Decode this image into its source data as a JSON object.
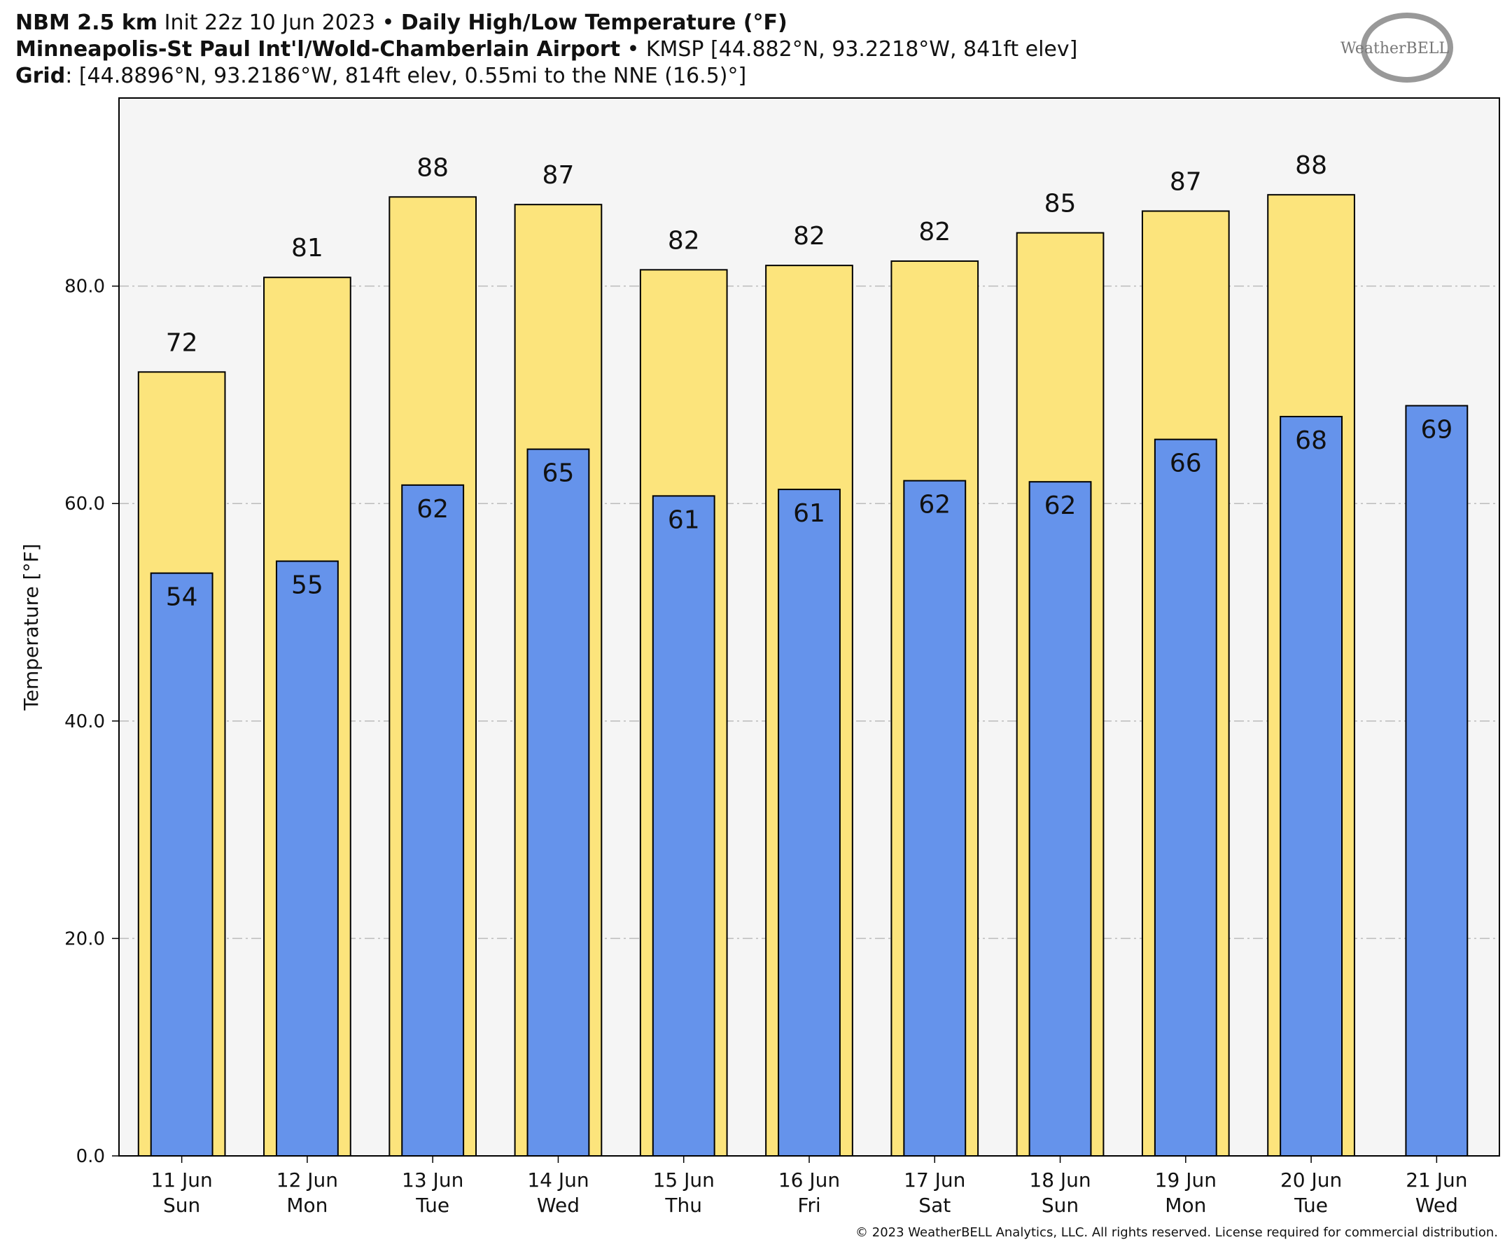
{
  "header": {
    "line1": [
      "NBM 2.5 km",
      " Init 22z 10 Jun 2023 • ",
      "Daily High/Low Temperature (°F)"
    ],
    "line2": [
      "Minneapolis-St Paul Int'l/Wold-Chamberlain Airport",
      " • KMSP [44.882°N, 93.2218°W, 841ft elev]"
    ],
    "line3": [
      "Grid",
      ": [44.8896°N, 93.2186°W, 814ft elev, 0.55mi to the NNE (16.5)°]"
    ],
    "logo": "WeatherBELL"
  },
  "chart_data": {
    "type": "bar",
    "categories": [
      "11 Jun",
      "12 Jun",
      "13 Jun",
      "14 Jun",
      "15 Jun",
      "16 Jun",
      "17 Jun",
      "18 Jun",
      "19 Jun",
      "20 Jun",
      "21 Jun"
    ],
    "weekdays": [
      "Sun",
      "Mon",
      "Tue",
      "Wed",
      "Thu",
      "Fri",
      "Sat",
      "Sun",
      "Mon",
      "Tue",
      "Wed"
    ],
    "y_label": "Temperature [°F]",
    "series": [
      {
        "name": "High",
        "color": "#fce47c",
        "values": [
          72.1,
          80.8,
          88.2,
          87.5,
          81.5,
          81.9,
          82.3,
          84.9,
          86.9,
          88.4,
          null
        ],
        "value_labels": [
          "72",
          "81",
          "88",
          "87",
          "82",
          "82",
          "82",
          "85",
          "87",
          "88",
          null
        ]
      },
      {
        "name": "Low",
        "color": "#6593eb",
        "values": [
          53.6,
          54.7,
          61.7,
          65.0,
          60.7,
          61.3,
          62.1,
          62.0,
          65.9,
          68.0,
          69.0
        ],
        "value_labels": [
          "54",
          "55",
          "62",
          "65",
          "61",
          "61",
          "62",
          "62",
          "66",
          "68",
          "69"
        ]
      }
    ],
    "ylim": [
      0,
      97.3
    ],
    "yticks": [
      {
        "value": 0,
        "label": "0.0"
      },
      {
        "value": 20,
        "label": "20.0"
      },
      {
        "value": 40,
        "label": "40.0"
      },
      {
        "value": 60,
        "label": "60.0"
      },
      {
        "value": 80,
        "label": "80.0"
      }
    ],
    "grid": true
  },
  "footer": "© 2023 WeatherBELL Analytics, LLC. All rights reserved. License required for commercial distribution."
}
